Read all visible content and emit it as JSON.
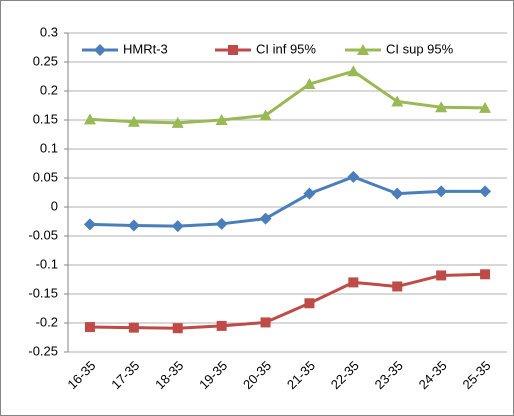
{
  "chart_data": {
    "type": "line",
    "categories": [
      "16-35",
      "17-35",
      "18-35",
      "19-35",
      "20-35",
      "21-35",
      "22-35",
      "23-35",
      "24-35",
      "25-35"
    ],
    "series": [
      {
        "name": "HMRt-3",
        "color": "#4a7ebb",
        "marker": "diamond",
        "values": [
          -0.03,
          -0.032,
          -0.033,
          -0.029,
          -0.02,
          0.023,
          0.052,
          0.023,
          0.027,
          0.027
        ]
      },
      {
        "name": "CI inf 95%",
        "color": "#be4b48",
        "marker": "square",
        "values": [
          -0.207,
          -0.208,
          -0.209,
          -0.205,
          -0.199,
          -0.166,
          -0.13,
          -0.137,
          -0.118,
          -0.116
        ]
      },
      {
        "name": "CI sup 95%",
        "color": "#98b954",
        "marker": "triangle",
        "values": [
          0.151,
          0.147,
          0.145,
          0.15,
          0.158,
          0.212,
          0.234,
          0.182,
          0.172,
          0.171
        ]
      }
    ],
    "ylim": [
      -0.25,
      0.3
    ],
    "yticks": [
      -0.25,
      -0.2,
      -0.15,
      -0.1,
      -0.05,
      0,
      0.05,
      0.1,
      0.15,
      0.2,
      0.25,
      0.3
    ],
    "grid": true,
    "legend": "top"
  }
}
